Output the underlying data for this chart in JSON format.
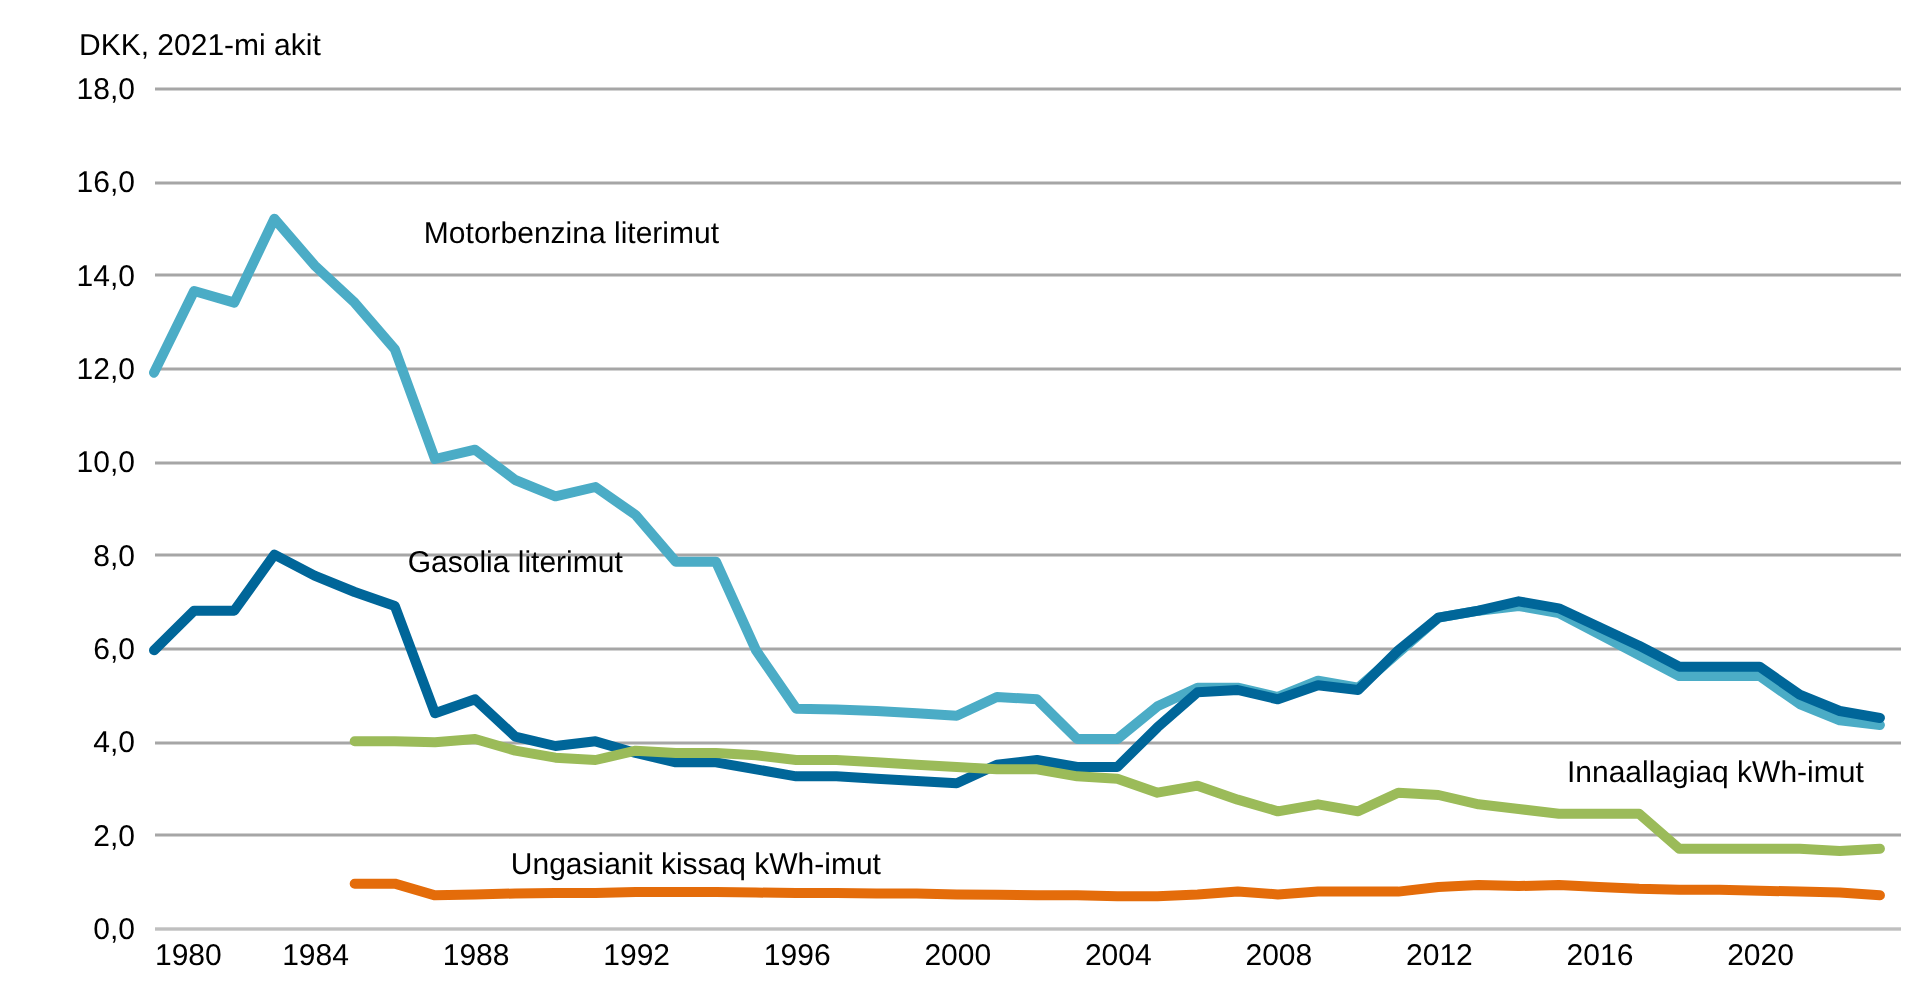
{
  "chart_data": {
    "type": "line",
    "ylabel": "DKK, 2021-mi akit",
    "x": [
      1980,
      1981,
      1982,
      1983,
      1984,
      1985,
      1986,
      1987,
      1988,
      1989,
      1990,
      1991,
      1992,
      1993,
      1994,
      1995,
      1996,
      1997,
      1998,
      1999,
      2000,
      2001,
      2002,
      2003,
      2004,
      2005,
      2006,
      2007,
      2008,
      2009,
      2010,
      2011,
      2012,
      2013,
      2014,
      2015,
      2016,
      2017,
      2018,
      2019,
      2020,
      2021,
      2022,
      2023
    ],
    "series": [
      {
        "name": "Motorbenzina literimut",
        "color": "#4bacc6",
        "values": [
          11.9,
          13.65,
          13.4,
          15.2,
          14.2,
          13.4,
          12.4,
          10.05,
          10.25,
          9.6,
          9.25,
          9.45,
          8.85,
          7.85,
          7.85,
          5.95,
          4.7,
          4.68,
          4.65,
          4.6,
          4.55,
          4.95,
          4.9,
          4.05,
          4.05,
          4.75,
          5.15,
          5.15,
          4.95,
          5.3,
          5.15,
          5.9,
          6.65,
          6.8,
          6.9,
          6.75,
          6.3,
          5.85,
          5.4,
          5.4,
          5.4,
          4.8,
          4.45,
          4.35
        ]
      },
      {
        "name": "Gasolia literimut",
        "color": "#006699",
        "values": [
          5.95,
          6.8,
          6.8,
          8.0,
          7.55,
          7.2,
          6.9,
          4.6,
          4.9,
          4.1,
          3.9,
          4.0,
          3.75,
          3.55,
          3.55,
          3.4,
          3.25,
          3.25,
          3.2,
          3.15,
          3.1,
          3.5,
          3.6,
          3.45,
          3.45,
          4.3,
          5.05,
          5.1,
          4.9,
          5.2,
          5.1,
          5.95,
          6.65,
          6.8,
          7.0,
          6.85,
          6.45,
          6.05,
          5.6,
          5.6,
          5.6,
          5.0,
          4.65,
          4.5
        ]
      },
      {
        "name": "Innaallagiaq kWh-imut",
        "color": "#9bbb59",
        "values": [
          null,
          null,
          null,
          null,
          null,
          4.0,
          4.0,
          3.98,
          4.05,
          3.8,
          3.65,
          3.6,
          3.8,
          3.75,
          3.75,
          3.7,
          3.6,
          3.6,
          3.55,
          3.5,
          3.45,
          3.4,
          3.4,
          3.25,
          3.2,
          2.9,
          3.05,
          2.75,
          2.5,
          2.65,
          2.5,
          2.9,
          2.85,
          2.65,
          2.55,
          2.45,
          2.45,
          2.45,
          1.7,
          1.7,
          1.7,
          1.7,
          1.65,
          1.7
        ]
      },
      {
        "name": "Ungasianit kissaq kWh-imut",
        "color": "#e46c0a",
        "values": [
          null,
          null,
          null,
          null,
          null,
          0.95,
          0.95,
          0.7,
          0.72,
          0.74,
          0.75,
          0.75,
          0.77,
          0.77,
          0.77,
          0.76,
          0.75,
          0.75,
          0.74,
          0.74,
          0.72,
          0.71,
          0.7,
          0.7,
          0.68,
          0.68,
          0.72,
          0.78,
          0.72,
          0.78,
          0.78,
          0.78,
          0.88,
          0.92,
          0.9,
          0.92,
          0.88,
          0.84,
          0.82,
          0.82,
          0.8,
          0.78,
          0.76,
          0.7
        ]
      }
    ],
    "xlim": [
      1980,
      2023.5
    ],
    "xticks": [
      1980,
      1984,
      1988,
      1992,
      1996,
      2000,
      2004,
      2008,
      2012,
      2016,
      2020
    ],
    "ylim": [
      0,
      18
    ],
    "yticks": [
      {
        "value": 0,
        "label": "0,0"
      },
      {
        "value": 2,
        "label": "2,0"
      },
      {
        "value": 4,
        "label": "4,0"
      },
      {
        "value": 6,
        "label": "6,0"
      },
      {
        "value": 8,
        "label": "8,0"
      },
      {
        "value": 10,
        "label": "10,0"
      },
      {
        "value": 12,
        "label": "12,0"
      },
      {
        "value": 14,
        "label": "14,0"
      },
      {
        "value": 16,
        "label": "16,0"
      },
      {
        "value": 18,
        "label": "18,0"
      }
    ],
    "grid": "y",
    "legend": false,
    "line_style": "solid",
    "marker": "none"
  }
}
